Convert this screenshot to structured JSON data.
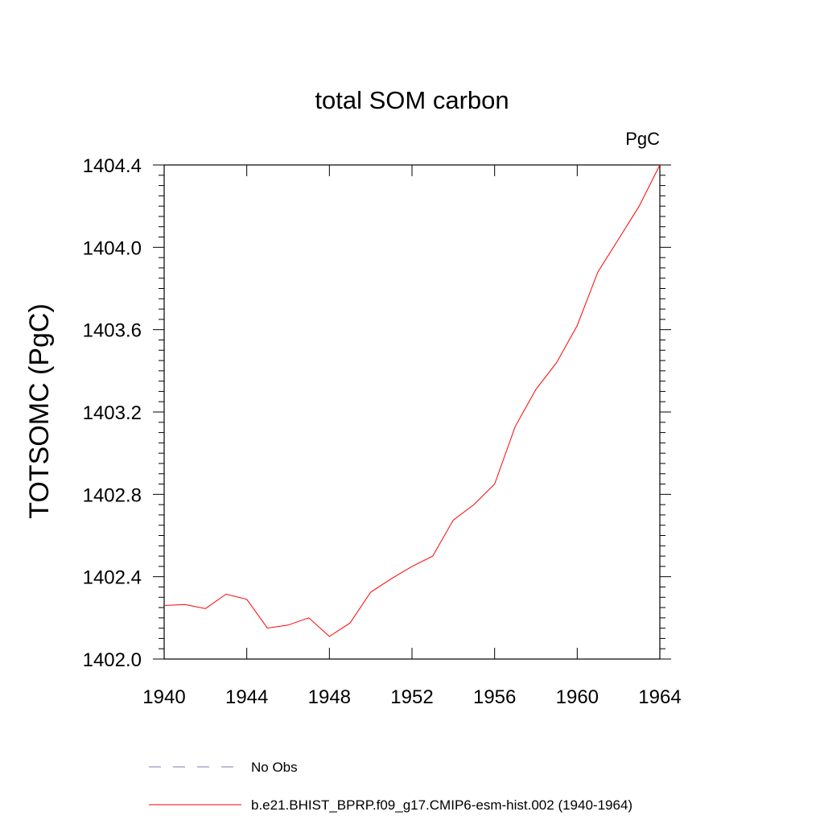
{
  "chart_data": {
    "type": "line",
    "title": "total SOM carbon",
    "units_label": "PgC",
    "xlabel": "",
    "ylabel": "TOTSOMC  (PgC)",
    "xlim": [
      1940,
      1964
    ],
    "ylim": [
      1402.0,
      1404.4
    ],
    "x_ticks": [
      1940,
      1944,
      1948,
      1952,
      1956,
      1960,
      1964
    ],
    "x_tick_labels": [
      "1940",
      "1944",
      "1948",
      "1952",
      "1956",
      "1960",
      "1964"
    ],
    "y_ticks": [
      1402.0,
      1402.4,
      1402.8,
      1403.2,
      1403.6,
      1404.0,
      1404.4
    ],
    "y_tick_labels": [
      "1402.0",
      "1402.4",
      "1402.8",
      "1403.2",
      "1403.6",
      "1404.0",
      "1404.4"
    ],
    "grid": false,
    "legend_position": "bottom",
    "series": [
      {
        "name": "b.e21.BHIST_BPRP.f09_g17.CMIP6-esm-hist.002 (1940-1964)",
        "color": "#ff0000",
        "style": "solid",
        "x": [
          1940,
          1941,
          1942,
          1943,
          1944,
          1945,
          1946,
          1947,
          1948,
          1949,
          1950,
          1951,
          1952,
          1953,
          1954,
          1955,
          1956,
          1957,
          1958,
          1959,
          1960,
          1961,
          1962,
          1963,
          1964
        ],
        "values": [
          1402.26,
          1402.265,
          1402.245,
          1402.315,
          1402.29,
          1402.15,
          1402.165,
          1402.2,
          1402.11,
          1402.175,
          1402.325,
          1402.39,
          1402.45,
          1402.5,
          1402.675,
          1402.75,
          1402.85,
          1403.13,
          1403.31,
          1403.44,
          1403.62,
          1403.88,
          1404.04,
          1404.2,
          1404.4
        ]
      }
    ],
    "legend": [
      {
        "label": "No Obs",
        "color": "#7b7bb5",
        "style": "dashed"
      },
      {
        "label": "b.e21.BHIST_BPRP.f09_g17.CMIP6-esm-hist.002 (1940-1964)",
        "color": "#ff0000",
        "style": "solid"
      }
    ]
  }
}
